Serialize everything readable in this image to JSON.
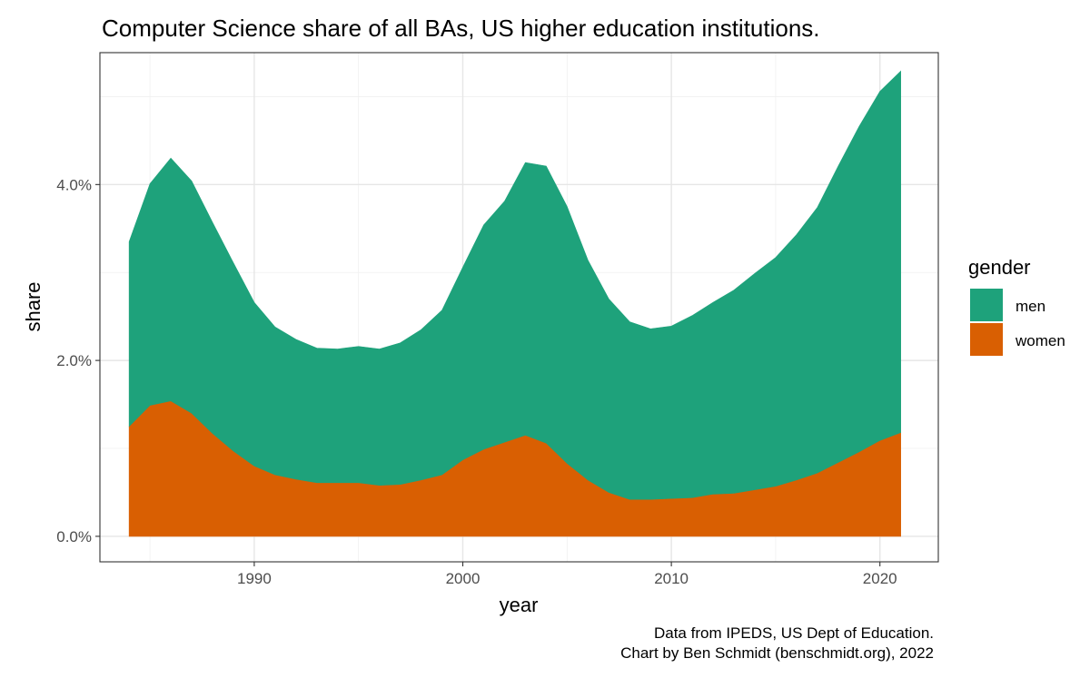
{
  "chart_data": {
    "type": "area",
    "stacked": true,
    "title": "Computer Science share of all BAs, US higher education institutions.",
    "xlabel": "year",
    "ylabel": "share",
    "xlim": [
      1982.6,
      2022.8
    ],
    "ylim": [
      -0.29,
      5.5
    ],
    "x_ticks": [
      1990,
      2000,
      2010,
      2020
    ],
    "x_tick_labels": [
      "1990",
      "2000",
      "2010",
      "2020"
    ],
    "y_ticks": [
      0,
      2,
      4
    ],
    "y_tick_labels": [
      "0.0%",
      "2.0%",
      "4.0%"
    ],
    "grid": true,
    "legend": {
      "title": "gender",
      "position": "right"
    },
    "x": [
      1984,
      1985,
      1986,
      1987,
      1988,
      1989,
      1990,
      1991,
      1992,
      1993,
      1994,
      1995,
      1996,
      1997,
      1998,
      1999,
      2000,
      2001,
      2002,
      2003,
      2004,
      2005,
      2006,
      2007,
      2008,
      2009,
      2010,
      2011,
      2012,
      2013,
      2014,
      2015,
      2016,
      2017,
      2018,
      2019,
      2020,
      2021
    ],
    "series": [
      {
        "name": "men",
        "color": "#1ea27b",
        "values": [
          2.1,
          2.52,
          2.76,
          2.64,
          2.4,
          2.14,
          1.86,
          1.68,
          1.59,
          1.53,
          1.52,
          1.55,
          1.55,
          1.61,
          1.71,
          1.87,
          2.19,
          2.55,
          2.74,
          3.1,
          3.15,
          2.92,
          2.5,
          2.2,
          2.02,
          1.94,
          1.96,
          2.07,
          2.18,
          2.31,
          2.46,
          2.6,
          2.79,
          3.02,
          3.37,
          3.7,
          3.97,
          4.11
        ]
      },
      {
        "name": "women",
        "color": "#d95f02",
        "values": [
          1.25,
          1.49,
          1.54,
          1.4,
          1.17,
          0.97,
          0.8,
          0.7,
          0.65,
          0.61,
          0.61,
          0.61,
          0.58,
          0.59,
          0.64,
          0.7,
          0.87,
          0.99,
          1.07,
          1.15,
          1.06,
          0.83,
          0.64,
          0.5,
          0.42,
          0.42,
          0.43,
          0.44,
          0.48,
          0.49,
          0.53,
          0.57,
          0.64,
          0.72,
          0.84,
          0.96,
          1.09,
          1.18
        ]
      }
    ]
  },
  "caption": {
    "line1": "Data from IPEDS, US Dept of Education.",
    "line2": "Chart by Ben Schmidt (benschmidt.org), 2022"
  }
}
